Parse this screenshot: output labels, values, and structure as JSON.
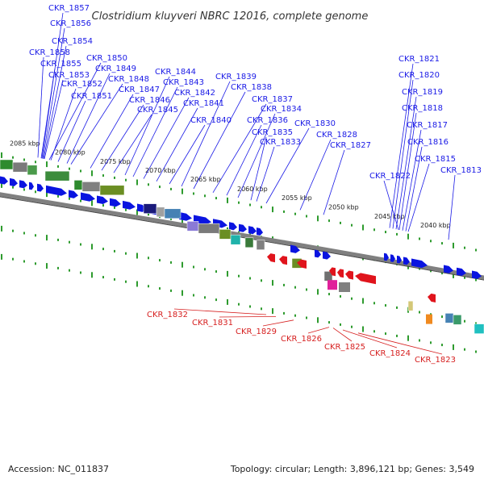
{
  "title": "Clostridium kluyveri NBRC 12016, complete genome",
  "footer": {
    "accession": "Accession: NC_011837",
    "stats": "Topology: circular; Length: 3,896,121 bp; Genes: 3,549"
  },
  "kbp_labels": [
    "2085 kbp",
    "2080 kbp",
    "2075 kbp",
    "2070 kbp",
    "2065 kbp",
    "2060 kbp",
    "2055 kbp",
    "2050 kbp",
    "2045 kbp",
    "2040 kbp"
  ],
  "forward_genes": [
    "CKR_1857",
    "CKR_1856",
    "CKR_1854",
    "CKR_1858",
    "CKR_1855",
    "CKR_1853",
    "CKR_1850",
    "CKR_1852",
    "CKR_1849",
    "CKR_1851",
    "CKR_1848",
    "CKR_1847",
    "CKR_1846",
    "CKR_1845",
    "CKR_1844",
    "CKR_1843",
    "CKR_1842",
    "CKR_1841",
    "CKR_1840",
    "CKR_1839",
    "CKR_1838",
    "CKR_1837",
    "CKR_1836",
    "CKR_1834",
    "CKR_1835",
    "CKR_1833",
    "CKR_1830",
    "CKR_1828",
    "CKR_1827",
    "CKR_1821",
    "CKR_1820",
    "CKR_1819",
    "CKR_1818",
    "CKR_1817",
    "CKR_1816",
    "CKR_1815",
    "CKR_1822",
    "CKR_1813"
  ],
  "reverse_genes": [
    "CKR_1832",
    "CKR_1831",
    "CKR_1829",
    "CKR_1826",
    "CKR_1825",
    "CKR_1824",
    "CKR_1823"
  ],
  "colors": {
    "forward_label": "#1a1ae6",
    "reverse_label": "#d61f1f",
    "forward_arrow": "#0a14e0",
    "reverse_arrow": "#e0141c",
    "backbone": "#808080",
    "tick": "#2e9b2e"
  }
}
